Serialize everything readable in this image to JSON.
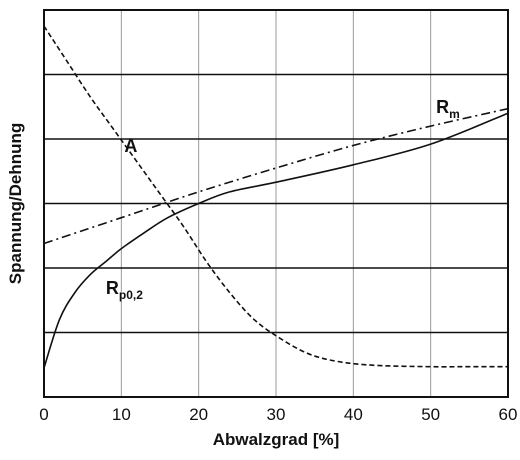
{
  "chart_data": {
    "type": "line",
    "title": "",
    "xlabel": "Abwalzgrad [%]",
    "ylabel": "Spannung/Dehnung",
    "xlim": [
      0,
      60
    ],
    "ylim": [
      0,
      6
    ],
    "x_ticks": [
      "0",
      "10",
      "20",
      "30",
      "40",
      "50",
      "60"
    ],
    "y_tick_labels_shown": false,
    "grid": true,
    "series": [
      {
        "name": "R_m",
        "style": "dash-dot",
        "color": "#111111",
        "points": [
          [
            0,
            2.38
          ],
          [
            10,
            2.78
          ],
          [
            20,
            3.18
          ],
          [
            30,
            3.55
          ],
          [
            40,
            3.9
          ],
          [
            50,
            4.2
          ],
          [
            60,
            4.47
          ]
        ]
      },
      {
        "name": "R_p0,2",
        "style": "solid",
        "color": "#111111",
        "points": [
          [
            0,
            0.45
          ],
          [
            2,
            1.2
          ],
          [
            4,
            1.62
          ],
          [
            6,
            1.9
          ],
          [
            8,
            2.1
          ],
          [
            10,
            2.3
          ],
          [
            13,
            2.55
          ],
          [
            16,
            2.78
          ],
          [
            20,
            3.0
          ],
          [
            24,
            3.18
          ],
          [
            30,
            3.33
          ],
          [
            40,
            3.6
          ],
          [
            50,
            3.92
          ],
          [
            60,
            4.4
          ]
        ]
      },
      {
        "name": "A",
        "style": "dashed",
        "color": "#111111",
        "points": [
          [
            0,
            5.75
          ],
          [
            3,
            5.2
          ],
          [
            6,
            4.65
          ],
          [
            9,
            4.15
          ],
          [
            12,
            3.65
          ],
          [
            15,
            3.15
          ],
          [
            18,
            2.65
          ],
          [
            21,
            2.1
          ],
          [
            24,
            1.62
          ],
          [
            27,
            1.22
          ],
          [
            30,
            0.95
          ],
          [
            34,
            0.68
          ],
          [
            38,
            0.55
          ],
          [
            43,
            0.49
          ],
          [
            50,
            0.47
          ],
          [
            55,
            0.47
          ],
          [
            60,
            0.47
          ]
        ]
      }
    ],
    "annotations": [
      {
        "series": "A",
        "main": "A",
        "sub": "",
        "x": 10.4,
        "y": 3.8
      },
      {
        "series": "R_m",
        "main": "R",
        "sub": "m",
        "x": 50.7,
        "y": 4.4
      },
      {
        "series": "R_p0,2",
        "main": "R",
        "sub": "p0,2",
        "x": 8,
        "y": 1.6
      }
    ]
  }
}
